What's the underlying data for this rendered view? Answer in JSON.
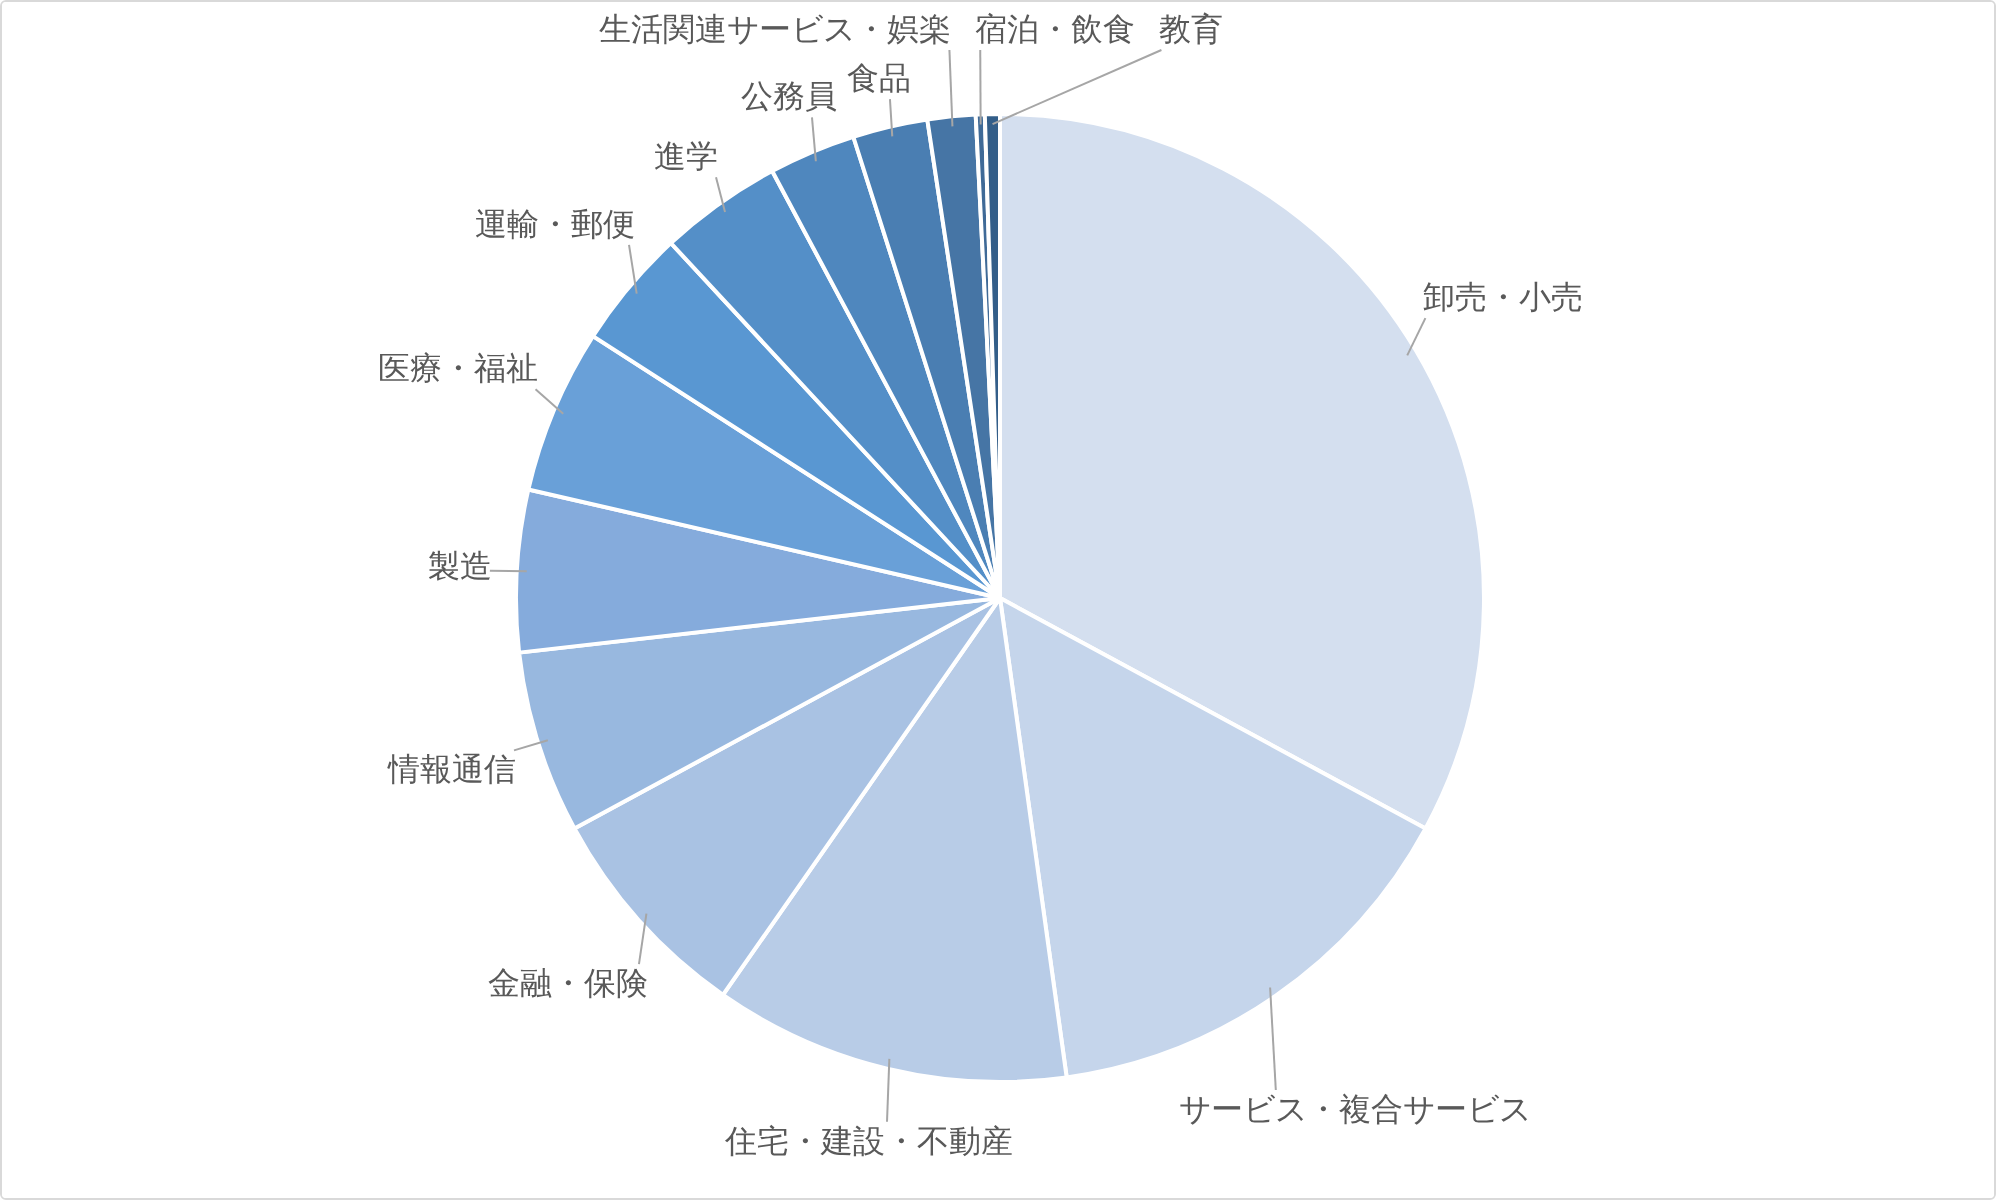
{
  "chart_data": {
    "type": "pie",
    "categories": [
      "卸売・小売",
      "サービス・複合サービス",
      "住宅・建設・不動産",
      "金融・保険",
      "情報通信",
      "製造",
      "医療・福祉",
      "運輸・郵便",
      "進学",
      "公務員",
      "食品",
      "生活関連サービス・娯楽",
      "宿泊・飲食",
      "教育"
    ],
    "values": [
      32.9,
      14.9,
      11.9,
      7.4,
      6.1,
      5.4,
      5.5,
      4,
      4.1,
      2.9,
      2.5,
      1.6,
      0.3,
      0.5
    ],
    "colors": [
      "#d4dfef",
      "#c5d5eb",
      "#b8cce7",
      "#a9c2e3",
      "#98b8df",
      "#85abdc",
      "#69a0d8",
      "#5997d2",
      "#548fc8",
      "#4f87be",
      "#4a7eb2",
      "#4675a5",
      "#3f6a97",
      "#335e89"
    ]
  }
}
